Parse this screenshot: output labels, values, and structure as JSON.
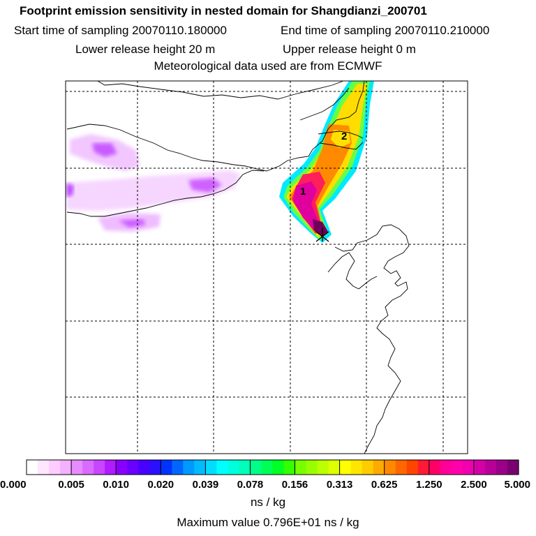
{
  "header": {
    "title": "Footprint emission sensitivity in nested domain for Shangdianzi_200701",
    "start_label": "Start time of sampling 20070110.180000",
    "end_label": "End time of sampling 20070110.210000",
    "lower_label": "Lower release height   20 m",
    "upper_label": "Upper release height    0 m",
    "met_label": "Meteorological data used are from ECMWF"
  },
  "chart_data": {
    "type": "heatmap",
    "title": "Footprint emission sensitivity in nested domain for Shangdianzi_200701",
    "grid": true,
    "markers": [
      {
        "label": "1"
      },
      {
        "label": "2"
      }
    ],
    "colorbar": {
      "tick_labels": [
        "0.000",
        "0.005",
        "0.010",
        "0.020",
        "0.039",
        "0.078",
        "0.156",
        "0.313",
        "0.625",
        "1.250",
        "2.500",
        "5.000"
      ],
      "colors": [
        "#ffffff",
        "#ffe6ff",
        "#ffccff",
        "#f5b0ff",
        "#e68cff",
        "#d96bff",
        "#c845ff",
        "#b21aff",
        "#8a00ff",
        "#6a00ff",
        "#4a00ff",
        "#2a10ff",
        "#0033ff",
        "#0066ff",
        "#0099ff",
        "#00bbff",
        "#00ddff",
        "#00ffff",
        "#00ffdd",
        "#00ffbb",
        "#00ff88",
        "#00ff55",
        "#00ff22",
        "#33ff00",
        "#77ff00",
        "#99ff00",
        "#bbff00",
        "#ddff00",
        "#ffff00",
        "#ffe600",
        "#ffcc00",
        "#ffaa00",
        "#ff8800",
        "#ff6600",
        "#ff4400",
        "#ff1a33",
        "#ff0066",
        "#ff0099",
        "#ff00aa",
        "#f000b0",
        "#d400a8",
        "#b80098",
        "#9a0088",
        "#7a0070"
      ],
      "units": "ns / kg"
    },
    "max_value_label": "Maximum value  0.796E+01 ns / kg"
  }
}
